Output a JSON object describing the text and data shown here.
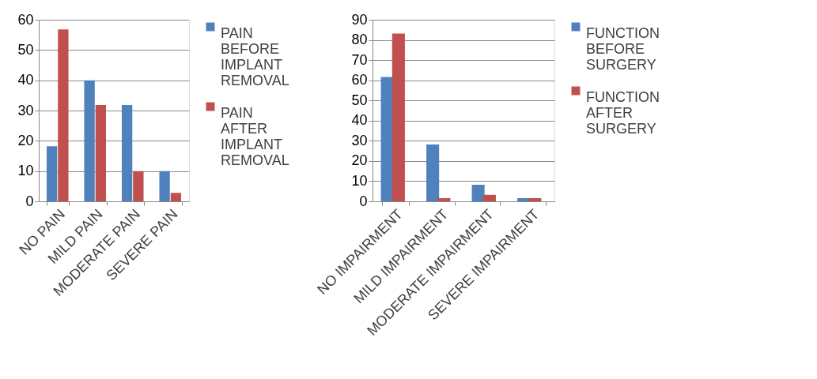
{
  "chart_data": [
    {
      "type": "bar",
      "categories": [
        "NO PAIN",
        "MILD PAIN",
        "MODERATE PAIN",
        "SEVERE PAIN"
      ],
      "ylim": [
        0,
        60
      ],
      "yticks": [
        0,
        10,
        20,
        30,
        40,
        50,
        60
      ],
      "grid": "y",
      "legend": "right",
      "series": [
        {
          "name": "PAIN BEFORE IMPLANT REMOVAL",
          "color": "#4f81bd",
          "values": [
            18.2,
            40,
            31.8,
            10
          ]
        },
        {
          "name": "PAIN AFTER IMPLANT REMOVAL",
          "color": "#c0504d",
          "values": [
            56.8,
            31.8,
            10,
            2.8
          ]
        }
      ]
    },
    {
      "type": "bar",
      "categories": [
        "NO IMPAIRMENT",
        "MILD IMPAIRMENT",
        "MODERATE IMPAIRMENT",
        "SEVERE IMPAIRMENT"
      ],
      "ylim": [
        0,
        90
      ],
      "yticks": [
        0,
        10,
        20,
        30,
        40,
        50,
        60,
        70,
        80,
        90
      ],
      "grid": "y",
      "legend": "right",
      "series": [
        {
          "name": "FUNCTION BEFORE SURGERY",
          "color": "#4f81bd",
          "values": [
            61.6,
            28.2,
            8.2,
            1.6
          ]
        },
        {
          "name": "FUNCTION AFTER SURGERY",
          "color": "#c0504d",
          "values": [
            83.2,
            1.6,
            3.2,
            1.6
          ]
        }
      ]
    }
  ]
}
